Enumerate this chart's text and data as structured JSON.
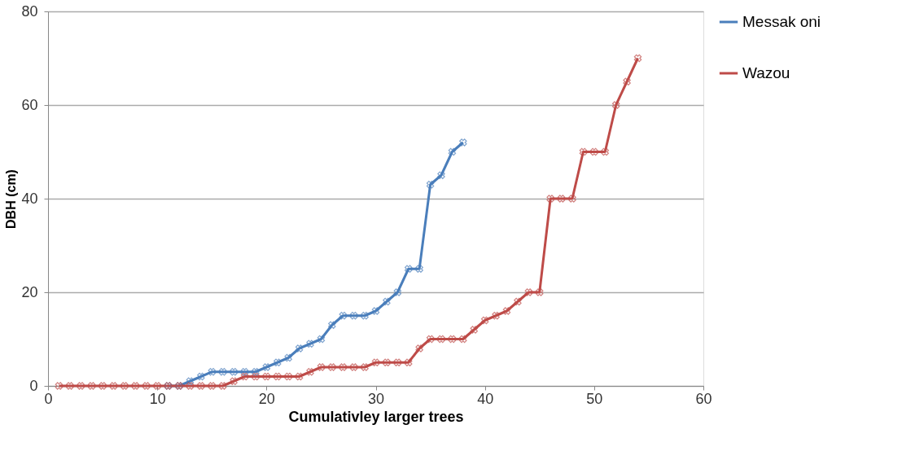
{
  "chart_data": {
    "type": "line",
    "xlabel": "Cumulativley larger trees",
    "ylabel": "DBH (cm)",
    "xlim": [
      0,
      60
    ],
    "xticks": [
      0,
      10,
      20,
      30,
      40,
      50,
      60
    ],
    "ylim": [
      0,
      80
    ],
    "yticks": [
      0,
      20,
      40,
      60,
      80
    ],
    "grid": "y",
    "legend": "right",
    "marker": "cross",
    "series": [
      {
        "name": "Messak oni",
        "color": "#4a7ebb",
        "x": [
          11,
          12,
          13,
          14,
          15,
          16,
          17,
          18,
          19,
          20,
          21,
          22,
          23,
          24,
          25,
          26,
          27,
          28,
          29,
          30,
          31,
          32,
          33,
          34,
          35,
          36,
          37,
          38
        ],
        "values": [
          0,
          0,
          1,
          2,
          3,
          3,
          3,
          3,
          3,
          4,
          5,
          6,
          8,
          9,
          10,
          13,
          15,
          15,
          15,
          16,
          18,
          20,
          25,
          25,
          43,
          45,
          50,
          52
        ]
      },
      {
        "name": "Wazou",
        "color": "#be4b48",
        "x": [
          1,
          2,
          3,
          4,
          5,
          6,
          7,
          8,
          9,
          10,
          11,
          12,
          13,
          14,
          15,
          16,
          17,
          18,
          19,
          20,
          21,
          22,
          23,
          24,
          25,
          26,
          27,
          28,
          29,
          30,
          31,
          32,
          33,
          34,
          35,
          36,
          37,
          38,
          39,
          40,
          41,
          42,
          43,
          44,
          45,
          46,
          47,
          48,
          49,
          50,
          51,
          52,
          53,
          54
        ],
        "values": [
          0,
          0,
          0,
          0,
          0,
          0,
          0,
          0,
          0,
          0,
          0,
          0,
          0,
          0,
          0,
          0,
          1,
          2,
          2,
          2,
          2,
          2,
          2,
          3,
          4,
          4,
          4,
          4,
          4,
          5,
          5,
          5,
          5,
          8,
          10,
          10,
          10,
          10,
          12,
          14,
          15,
          16,
          18,
          20,
          20,
          40,
          40,
          40,
          50,
          50,
          50,
          60,
          65,
          70
        ]
      }
    ]
  }
}
